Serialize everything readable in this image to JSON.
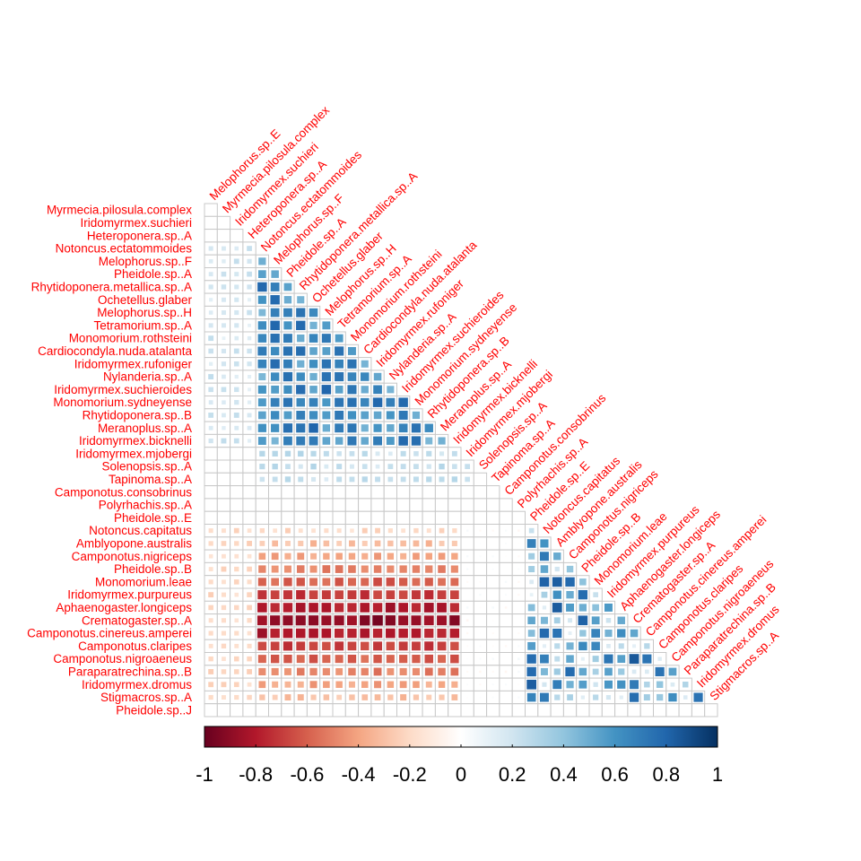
{
  "chart_data": {
    "type": "heatmap",
    "subtype": "correlation-lower-triangle",
    "labels": [
      "Myrmecia.pilosula.complex",
      "Iridomyrmex.suchieri",
      "Heteroponera.sp..A",
      "Notoncus.ectatommoides",
      "Melophorus.sp..F",
      "Pheidole.sp..A",
      "Rhytidoponera.metallica.sp..A",
      "Ochetellus.glaber",
      "Melophorus.sp..H",
      "Tetramorium.sp..A",
      "Monomorium.rothsteini",
      "Cardiocondyla.nuda.atalanta",
      "Iridomyrmex.rufoniger",
      "Nylanderia.sp..A",
      "Iridomyrmex.suchieroides",
      "Monomorium.sydneyense",
      "Rhytidoponera.sp..B",
      "Meranoplus.sp..A",
      "Iridomyrmex.bicknelli",
      "Iridomyrmex.mjobergi",
      "Solenopsis.sp..A",
      "Tapinoma.sp..A",
      "Camponotus.consobrinus",
      "Polyrhachis.sp..A",
      "Pheidole.sp..E",
      "Notoncus.capitatus",
      "Amblyopone.australis",
      "Camponotus.nigriceps",
      "Pheidole.sp..B",
      "Monomorium.leae",
      "Iridomyrmex.purpureus",
      "Aphaenogaster.longiceps",
      "Crematogaster.sp..A",
      "Camponotus.cinereus.amperei",
      "Camponotus.claripes",
      "Camponotus.nigroaeneus",
      "Paraparatrechina.sp..B",
      "Iridomyrmex.dromus",
      "Stigmacros.sp..A",
      "Pheidole.sp..J"
    ],
    "column_labels": [
      "Melophorus.sp..E",
      "Myrmecia.pilosula.complex",
      "Iridomyrmex.suchieri",
      "Heteroponera.sp..A",
      "Notoncus.ectatommoides",
      "Melophorus.sp..F",
      "Pheidole.sp..A",
      "Rhytidoponera.metallica.sp..A",
      "Ochetellus.glaber",
      "Melophorus.sp..H",
      "Tetramorium.sp..A",
      "Monomorium.rothsteini",
      "Cardiocondyla.nuda.atalanta",
      "Iridomyrmex.rufoniger",
      "Nylanderia.sp..A",
      "Iridomyrmex.suchieroides",
      "Monomorium.sydneyense",
      "Rhytidoponera.sp..B",
      "Meranoplus.sp..A",
      "Iridomyrmex.bicknelli",
      "Iridomyrmex.mjobergi",
      "Solenopsis.sp..A",
      "Tapinoma.sp..A",
      "Camponotus.consobrinus",
      "Polyrhachis.sp..A",
      "Pheidole.sp..E",
      "Notoncus.capitatus",
      "Amblyopone.australis",
      "Camponotus.nigriceps",
      "Pheidole.sp..B",
      "Monomorium.leae",
      "Iridomyrmex.purpureus",
      "Aphaenogaster.longiceps",
      "Crematogaster.sp..A",
      "Camponotus.cinereus.amperei",
      "Camponotus.claripes",
      "Camponotus.nigroaeneus",
      "Paraparatrechina.sp..B",
      "Iridomyrmex.dromus",
      "Stigmacros.sp..A"
    ],
    "colorbar": {
      "ticks": [
        "-1",
        "-0.8",
        "-0.6",
        "-0.4",
        "-0.2",
        "0",
        "0.2",
        "0.4",
        "0.6",
        "0.8",
        "1"
      ],
      "range": [
        -1,
        1
      ],
      "palette": [
        "#67001F",
        "#B2182B",
        "#D6604D",
        "#F4A582",
        "#FDDBC7",
        "#FFFFFF",
        "#D1E5F0",
        "#92C5DE",
        "#4393C3",
        "#2166AC",
        "#053061"
      ]
    },
    "label_color": "#FF0000",
    "grid_color": "#C8C8C8",
    "value_rules": {
      "blue_block": {
        "rows": "Melophorus.sp..F to Iridomyrmex.bicknelli",
        "cols": "Notoncus.ectatommoides to Meranoplus.sp..A",
        "range": [
          0.45,
          0.8
        ]
      },
      "light_blue_edges": {
        "cols": "Melophorus.sp..E to Heteroponera.sp..A",
        "range": [
          0.1,
          0.25
        ]
      },
      "red_block": {
        "rows": "Notoncus.capitatus to Stigmacros.sp..A",
        "cols": "Notoncus.ectatommoides to Iridomyrmex.bicknelli",
        "range": [
          -0.9,
          -0.1
        ]
      },
      "lower_blue_block": {
        "rows": "Notoncus.capitatus to Stigmacros.sp..A",
        "cols": "Notoncus.capitatus to Stigmacros.sp..A",
        "range": [
          0.1,
          0.85
        ]
      }
    }
  }
}
